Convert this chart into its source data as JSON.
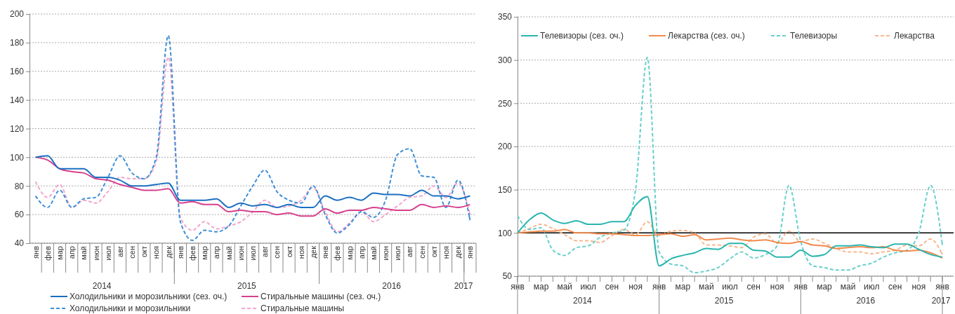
{
  "chart_data": [
    {
      "type": "line",
      "categories": [
        "янв",
        "фев",
        "мар",
        "апр",
        "май",
        "июн",
        "июл",
        "авг",
        "сен",
        "окт",
        "ноя",
        "дек",
        "янв",
        "фев",
        "мар",
        "апр",
        "май",
        "июн",
        "июл",
        "авг",
        "сен",
        "окт",
        "ноя",
        "дек",
        "янв",
        "фев",
        "мар",
        "апр",
        "май",
        "июн",
        "июл",
        "авг",
        "сен",
        "окт",
        "ноя",
        "дек",
        "янв"
      ],
      "ylim": [
        40,
        200
      ],
      "yticks": [
        40,
        60,
        80,
        100,
        120,
        140,
        160,
        180,
        200
      ],
      "grid": "y",
      "legend": "bottom",
      "annotations": [
        "2014",
        "2015",
        "2016",
        "2017"
      ],
      "series": [
        {
          "name": "Холодильники и морозильники (сез. оч.)",
          "color": "#1b6fc2",
          "line_style": "solid",
          "values": [
            100,
            101,
            92,
            92,
            92,
            86,
            86,
            84,
            80,
            80,
            81,
            82,
            70,
            70,
            70,
            71,
            65,
            68,
            66,
            67,
            65,
            67,
            65,
            65,
            73,
            70,
            72,
            70,
            75,
            74,
            74,
            73,
            77,
            73,
            73,
            71,
            73
          ]
        },
        {
          "name": "Стиральные машины (сез. оч.)",
          "color": "#d6408c",
          "line_style": "solid",
          "values": [
            100,
            98,
            92,
            90,
            89,
            85,
            84,
            81,
            79,
            77,
            77,
            78,
            68,
            69,
            67,
            67,
            62,
            63,
            62,
            62,
            60,
            61,
            59,
            59,
            64,
            61,
            63,
            63,
            65,
            64,
            63,
            63,
            67,
            65,
            66,
            65,
            67
          ]
        },
        {
          "name": "Холодильники и морозильники",
          "color": "#3f8fd8",
          "line_style": "dashed",
          "values": [
            73,
            65,
            77,
            65,
            71,
            72,
            86,
            101,
            89,
            85,
            100,
            185,
            55,
            42,
            49,
            48,
            52,
            66,
            80,
            91,
            76,
            70,
            68,
            80,
            60,
            47,
            53,
            62,
            58,
            70,
            102,
            106,
            87,
            86,
            65,
            84,
            56
          ]
        },
        {
          "name": "Стиральные машины",
          "color": "#f2a6cb",
          "line_style": "dashed",
          "values": [
            83,
            72,
            81,
            65,
            70,
            68,
            76,
            86,
            85,
            85,
            97,
            170,
            58,
            49,
            55,
            50,
            52,
            55,
            62,
            70,
            65,
            66,
            70,
            79,
            62,
            48,
            54,
            62,
            55,
            60,
            66,
            72,
            73,
            80,
            72,
            82,
            60
          ]
        }
      ]
    },
    {
      "type": "line",
      "categories": [
        "янв",
        null,
        "мар",
        null,
        "май",
        null,
        "июл",
        null,
        "сен",
        null,
        "ноя",
        null,
        "янв",
        null,
        "мар",
        null,
        "май",
        null,
        "июл",
        null,
        "сен",
        null,
        "ноя",
        null,
        "янв",
        null,
        "мар",
        null,
        "май",
        null,
        "июл",
        null,
        "сен",
        null,
        "ноя",
        null,
        "янв"
      ],
      "ylim": [
        50,
        350
      ],
      "yticks": [
        50,
        100,
        150,
        200,
        250,
        300,
        350
      ],
      "grid": "y",
      "legend": "top",
      "annotations": [
        "2014",
        "2015",
        "2016",
        "2017"
      ],
      "ref_lines": [
        {
          "axis": "y",
          "value": 100,
          "color": "#000000"
        }
      ],
      "series": [
        {
          "name": "Телевизоры (сез. оч.)",
          "color": "#2bb5ae",
          "line_style": "solid",
          "values": [
            100,
            115,
            123,
            115,
            111,
            114,
            110,
            110,
            113,
            113,
            132,
            142,
            62,
            70,
            74,
            77,
            82,
            81,
            88,
            88,
            80,
            79,
            72,
            72,
            80,
            73,
            75,
            85,
            85,
            86,
            84,
            83,
            87,
            87,
            81,
            75,
            72
          ]
        },
        {
          "name": "Лекарства (сез. оч.)",
          "color": "#f28a4c",
          "line_style": "solid",
          "values": [
            100,
            101,
            102,
            102,
            104,
            100,
            100,
            99,
            99,
            98,
            97,
            97,
            98,
            99,
            96,
            98,
            92,
            93,
            94,
            92,
            91,
            92,
            89,
            88,
            90,
            86,
            85,
            82,
            83,
            84,
            83,
            84,
            80,
            79,
            80,
            77,
            71
          ]
        },
        {
          "name": "Телевизоры",
          "color": "#68d0cb",
          "line_style": "dashed",
          "values": [
            120,
            104,
            106,
            80,
            74,
            83,
            85,
            95,
            100,
            103,
            150,
            303,
            78,
            64,
            62,
            54,
            56,
            60,
            70,
            78,
            71,
            75,
            85,
            155,
            90,
            62,
            60,
            57,
            57,
            62,
            65,
            72,
            77,
            80,
            100,
            155,
            86
          ]
        },
        {
          "name": "Лекарства",
          "color": "#f7b78d",
          "line_style": "dashed",
          "values": [
            100,
            105,
            110,
            105,
            98,
            91,
            91,
            89,
            97,
            104,
            98,
            113,
            97,
            102,
            103,
            100,
            86,
            86,
            85,
            83,
            95,
            99,
            88,
            102,
            90,
            93,
            88,
            82,
            78,
            78,
            76,
            78,
            80,
            86,
            85,
            93,
            75
          ]
        }
      ]
    }
  ]
}
